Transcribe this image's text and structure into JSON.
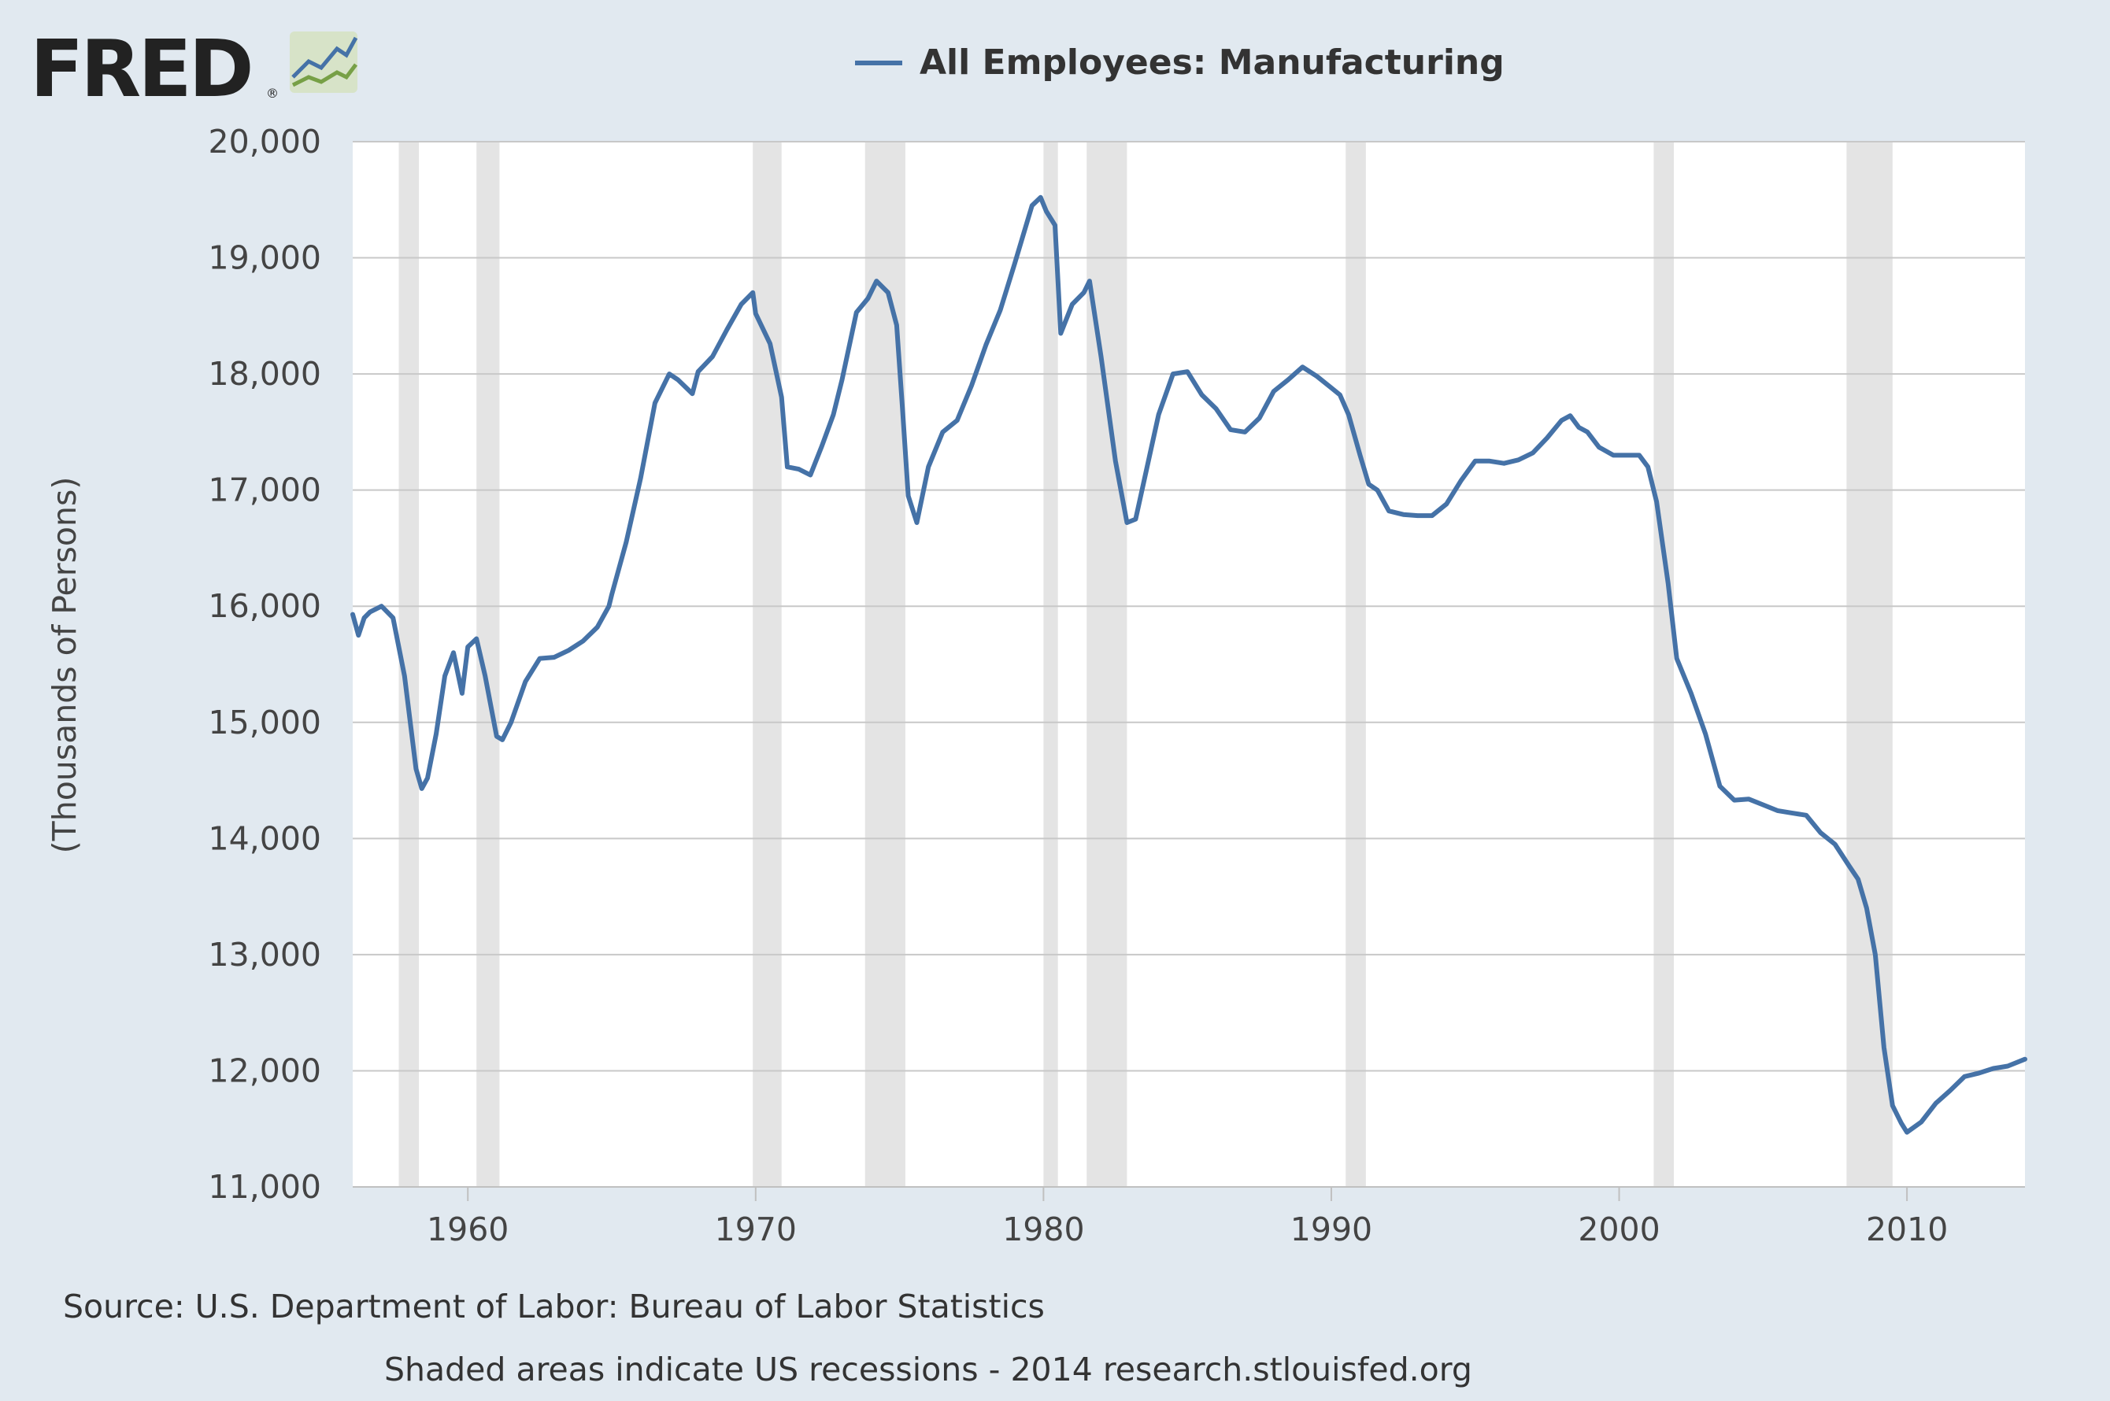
{
  "logo": {
    "text": "FRED",
    "registered": "®"
  },
  "legend": {
    "label": "All Employees: Manufacturing",
    "color": "#4572a7"
  },
  "chart_data": {
    "type": "line",
    "title": "",
    "ylabel": "(Thousands of Persons)",
    "xlabel": "",
    "xlim": [
      1956.0,
      2014.1
    ],
    "ylim": [
      11000,
      20000
    ],
    "yticks": [
      11000,
      12000,
      13000,
      14000,
      15000,
      16000,
      17000,
      18000,
      19000,
      20000
    ],
    "ytick_labels": [
      "11,000",
      "12,000",
      "13,000",
      "14,000",
      "15,000",
      "16,000",
      "17,000",
      "18,000",
      "19,000",
      "20,000"
    ],
    "xticks": [
      1960,
      1970,
      1980,
      1990,
      2000,
      2010
    ],
    "xtick_labels": [
      "1960",
      "1970",
      "1980",
      "1990",
      "2000",
      "2010"
    ],
    "grid": "horizontal",
    "legend_position": "top-center",
    "recessions": [
      [
        1957.6,
        1958.3
      ],
      [
        1960.3,
        1961.1
      ],
      [
        1969.9,
        1970.9
      ],
      [
        1973.8,
        1975.2
      ],
      [
        1980.0,
        1980.5
      ],
      [
        1981.5,
        1982.9
      ],
      [
        1990.5,
        1991.2
      ],
      [
        2001.2,
        2001.9
      ],
      [
        2007.9,
        2009.5
      ]
    ],
    "series": [
      {
        "name": "All Employees: Manufacturing",
        "color": "#4572a7",
        "x": [
          1956.0,
          1956.2,
          1956.4,
          1956.6,
          1957.0,
          1957.4,
          1957.8,
          1958.2,
          1958.4,
          1958.6,
          1958.9,
          1959.2,
          1959.5,
          1959.8,
          1960.0,
          1960.3,
          1960.6,
          1961.0,
          1961.2,
          1961.5,
          1962.0,
          1962.5,
          1963.0,
          1963.5,
          1964.0,
          1964.5,
          1964.9,
          1965.0,
          1965.5,
          1966.0,
          1966.5,
          1967.0,
          1967.3,
          1967.8,
          1968.0,
          1968.5,
          1969.0,
          1969.5,
          1969.9,
          1970.0,
          1970.5,
          1970.9,
          1971.1,
          1971.5,
          1971.9,
          1972.3,
          1972.7,
          1973.0,
          1973.5,
          1973.9,
          1974.2,
          1974.6,
          1974.9,
          1975.1,
          1975.3,
          1975.6,
          1976.0,
          1976.5,
          1977.0,
          1977.5,
          1978.0,
          1978.5,
          1979.0,
          1979.3,
          1979.6,
          1979.9,
          1980.1,
          1980.4,
          1980.6,
          1981.0,
          1981.4,
          1981.6,
          1982.0,
          1982.5,
          1982.9,
          1983.2,
          1983.6,
          1984.0,
          1984.5,
          1985.0,
          1985.5,
          1986.0,
          1986.5,
          1987.0,
          1987.5,
          1988.0,
          1988.5,
          1989.0,
          1989.5,
          1990.0,
          1990.3,
          1990.6,
          1991.0,
          1991.3,
          1991.6,
          1992.0,
          1992.5,
          1993.0,
          1993.5,
          1994.0,
          1994.5,
          1995.0,
          1995.5,
          1996.0,
          1996.5,
          1997.0,
          1997.5,
          1998.0,
          1998.3,
          1998.6,
          1998.9,
          1999.3,
          1999.8,
          2000.3,
          2000.7,
          2001.0,
          2001.3,
          2001.7,
          2002.0,
          2002.5,
          2003.0,
          2003.5,
          2004.0,
          2004.5,
          2005.0,
          2005.5,
          2006.0,
          2006.5,
          2007.0,
          2007.5,
          2008.0,
          2008.3,
          2008.6,
          2008.9,
          2009.2,
          2009.5,
          2009.8,
          2010.0,
          2010.5,
          2011.0,
          2011.5,
          2012.0,
          2012.5,
          2013.0,
          2013.5,
          2014.1
        ],
        "values": [
          15930,
          15750,
          15900,
          15950,
          16000,
          15900,
          15400,
          14600,
          14430,
          14520,
          14900,
          15400,
          15600,
          15250,
          15650,
          15720,
          15400,
          14880,
          14850,
          15000,
          15350,
          15550,
          15560,
          15620,
          15700,
          15820,
          16000,
          16100,
          16550,
          17100,
          17750,
          18000,
          17950,
          17830,
          18020,
          18150,
          18380,
          18600,
          18700,
          18520,
          18260,
          17800,
          17200,
          17180,
          17130,
          17380,
          17650,
          17950,
          18530,
          18650,
          18800,
          18700,
          18420,
          17700,
          16950,
          16720,
          17200,
          17500,
          17600,
          17900,
          18250,
          18550,
          18950,
          19200,
          19450,
          19520,
          19400,
          19280,
          18350,
          18600,
          18700,
          18800,
          18150,
          17250,
          16720,
          16750,
          17200,
          17650,
          18000,
          18020,
          17820,
          17700,
          17520,
          17500,
          17620,
          17850,
          17950,
          18060,
          17980,
          17880,
          17820,
          17650,
          17300,
          17050,
          17000,
          16820,
          16790,
          16780,
          16780,
          16880,
          17080,
          17250,
          17250,
          17230,
          17260,
          17320,
          17450,
          17600,
          17640,
          17540,
          17500,
          17370,
          17300,
          17300,
          17300,
          17200,
          16900,
          16200,
          15550,
          15250,
          14900,
          14450,
          14330,
          14340,
          14290,
          14240,
          14220,
          14200,
          14050,
          13950,
          13760,
          13650,
          13400,
          13000,
          12200,
          11700,
          11550,
          11470,
          11560,
          11720,
          11830,
          11950,
          11980,
          12020,
          12040,
          12100
        ]
      }
    ]
  },
  "footer": {
    "source": "Source: U.S. Department of Labor: Bureau of Labor Statistics",
    "note": "Shaded areas indicate US recessions - 2014 research.stlouisfed.org"
  }
}
